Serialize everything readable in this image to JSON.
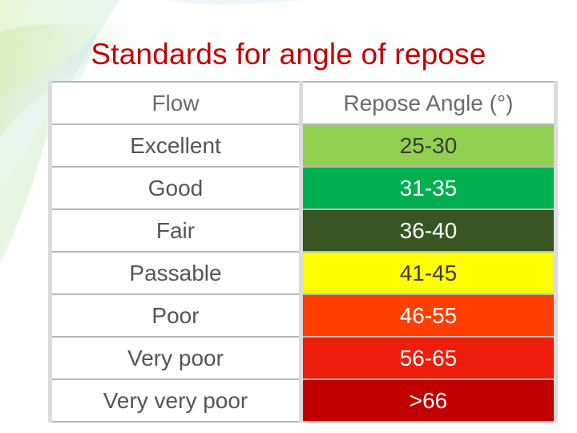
{
  "slide": {
    "title": "Standards for angle of repose"
  },
  "table": {
    "headers": {
      "flow": "Flow",
      "angle": "Repose Angle (°)"
    },
    "rows": [
      {
        "flow": "Excellent",
        "angle": "25-30",
        "color": "#92d050",
        "text_color": "#3a3a3a"
      },
      {
        "flow": "Good",
        "angle": "31-35",
        "color": "#00b050",
        "text_color": "#ffffff"
      },
      {
        "flow": "Fair",
        "angle": "36-40",
        "color": "#375623",
        "text_color": "#ffffff"
      },
      {
        "flow": "Passable",
        "angle": "41-45",
        "color": "#ffff00",
        "text_color": "#3a3a3a"
      },
      {
        "flow": "Poor",
        "angle": "46-55",
        "color": "#ff3f00",
        "text_color": "#ffffff"
      },
      {
        "flow": "Very poor",
        "angle": "56-65",
        "color": "#ee1c0a",
        "text_color": "#ffffff"
      },
      {
        "flow": "Very very poor",
        "angle": ">66",
        "color": "#c00000",
        "text_color": "#ffffff"
      }
    ]
  },
  "colors": {
    "title": "#c00000",
    "header_text": "#6b6b6b",
    "flow_text": "#555555"
  }
}
